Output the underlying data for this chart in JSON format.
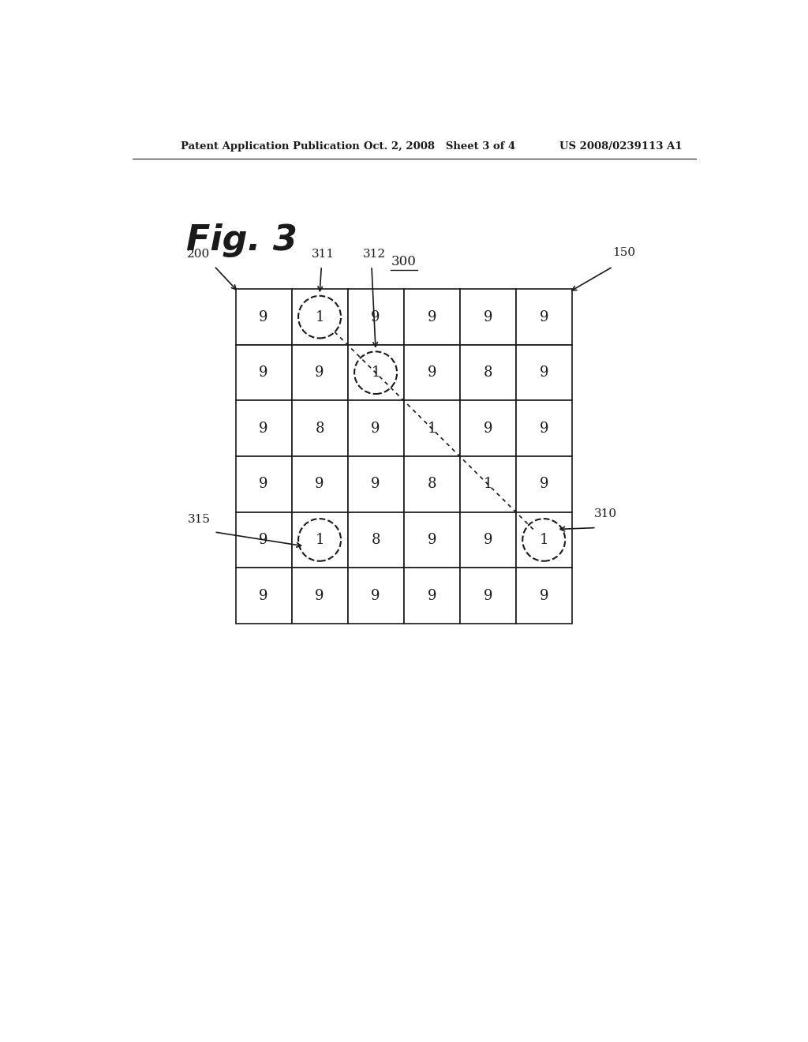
{
  "header_left": "Patent Application Publication",
  "header_mid": "Oct. 2, 2008   Sheet 3 of 4",
  "header_right": "US 2008/0239113 A1",
  "fig_label": "Fig. 3",
  "grid_label": "300",
  "label_200": "200",
  "label_311": "311",
  "label_312": "312",
  "label_315": "315",
  "label_310": "310",
  "label_150": "150",
  "grid": [
    [
      9,
      1,
      9,
      9,
      9,
      9
    ],
    [
      9,
      9,
      1,
      9,
      8,
      9
    ],
    [
      9,
      8,
      9,
      1,
      9,
      9
    ],
    [
      9,
      9,
      9,
      8,
      1,
      9
    ],
    [
      9,
      1,
      8,
      9,
      9,
      1
    ],
    [
      9,
      9,
      9,
      9,
      9,
      9
    ]
  ],
  "bg_color": "#ffffff",
  "grid_color": "#1a1a1a",
  "text_color": "#1a1a1a"
}
